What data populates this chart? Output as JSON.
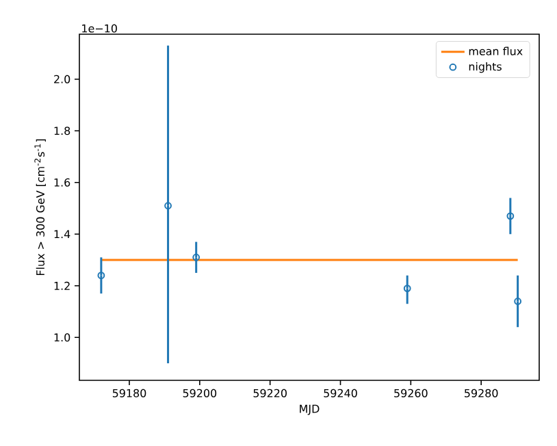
{
  "chart_data": {
    "type": "scatter",
    "xlabel": "MJD",
    "ylabel": "Flux > 300 GeV [cm$^{-2}$s$^{-1}$]",
    "annotations": [
      "1e−10"
    ],
    "xlim": [
      59165.8,
      59296.5
    ],
    "xticks": [
      59180,
      59200,
      59220,
      59240,
      59260,
      59280
    ],
    "ylim": [
      0.834,
      2.174
    ],
    "yticks": [
      {
        "value": 1.0,
        "label": "1.0"
      },
      {
        "value": 1.2,
        "label": "1.2"
      },
      {
        "value": 1.4,
        "label": "1.4"
      },
      {
        "value": 1.6,
        "label": "1.6"
      },
      {
        "value": 1.8,
        "label": "1.8"
      },
      {
        "value": 2.0,
        "label": "2.0"
      }
    ],
    "legend": "top right",
    "series": [
      {
        "name": "mean flux",
        "type": "line",
        "marker": "none",
        "color": "#ff7f0e",
        "x": [
          59172,
          59290.4
        ],
        "values": [
          1.3,
          1.3
        ]
      },
      {
        "name": "nights",
        "marker": "circle",
        "color": "#1f77b4",
        "x": [
          59172,
          59191,
          59199,
          59259,
          59288.3,
          59290.4
        ],
        "values": [
          1.24,
          1.51,
          1.31,
          1.19,
          1.47,
          1.14
        ],
        "errors": [
          [
            1.17,
            1.31
          ],
          [
            0.9,
            2.13
          ],
          [
            1.25,
            1.37
          ],
          [
            1.13,
            1.24
          ],
          [
            1.4,
            1.54
          ],
          [
            1.04,
            1.24
          ]
        ]
      }
    ]
  }
}
